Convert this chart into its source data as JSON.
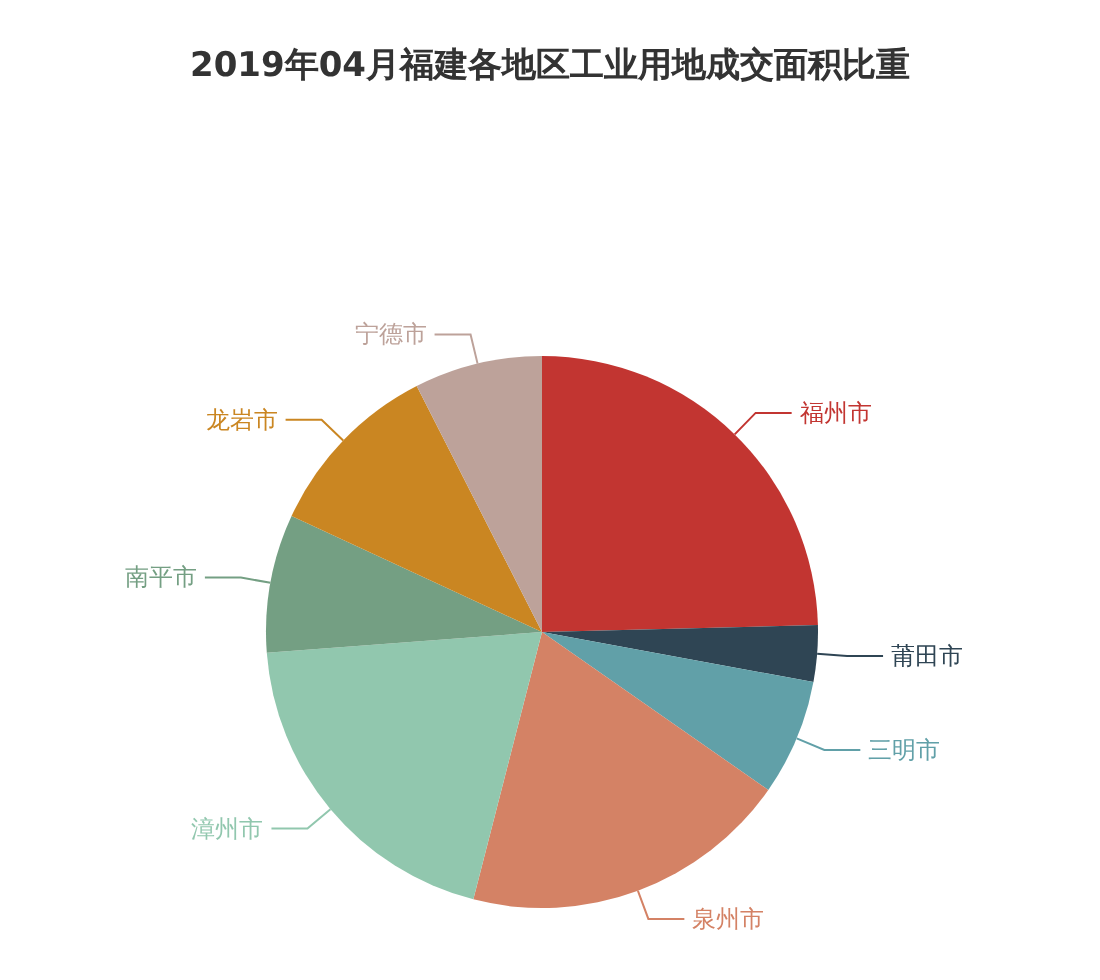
{
  "chart_data": {
    "type": "pie",
    "title": "2019年04月福建各地区工业用地成交面积比重",
    "categories": [
      "福州市",
      "莆田市",
      "三明市",
      "泉州市",
      "漳州市",
      "南平市",
      "龙岩市",
      "宁德市"
    ],
    "values": [
      24.6,
      3.3,
      6.8,
      19.3,
      19.8,
      8.1,
      10.6,
      7.5
    ],
    "colors": [
      "#c23531",
      "#2f4554",
      "#61a0a8",
      "#d48265",
      "#91c7ae",
      "#749f83",
      "#ca8622",
      "#bda29a"
    ]
  }
}
